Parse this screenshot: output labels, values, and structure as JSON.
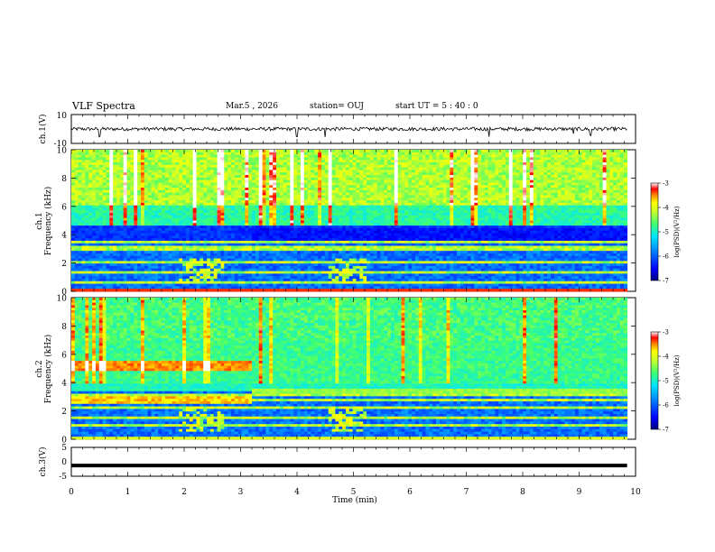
{
  "header": {
    "title": "VLF Spectra",
    "date": "Mar.5 , 2026",
    "station": "station= OUJ",
    "start_time": "start UT = 5 : 40 : 0"
  },
  "colors": {
    "colormap": [
      "#00007f",
      "#0000ff",
      "#0080ff",
      "#00e5ff",
      "#40ff80",
      "#a0ff40",
      "#ffff00",
      "#ff8000",
      "#ff0000",
      "#ffffff"
    ],
    "trace": "#000000"
  },
  "chart_data": [
    {
      "id": "ch1-waveform",
      "type": "line",
      "ylabel": "ch.1(V)",
      "ylim": [
        -10,
        10
      ],
      "yticks": [
        "10",
        "-10"
      ],
      "xlim": [
        0,
        10
      ],
      "series": [
        {
          "baseline": 0,
          "amplitude": 1.2,
          "spikes_at": [
            0.5,
            4.0,
            4.5,
            7.4,
            8.9,
            9.2
          ]
        }
      ]
    },
    {
      "id": "ch1-spectrogram",
      "type": "heatmap",
      "ylabel": "ch.1\nFrequency (kHz)",
      "ylabel_lines": [
        "ch.1",
        "Frequency (kHz)"
      ],
      "ylim": [
        0,
        10
      ],
      "yticks": [
        "0",
        "2",
        "4",
        "6",
        "8",
        "10"
      ],
      "xlim": [
        0,
        9.85
      ],
      "colorbar": {
        "label": "log(PSD)(V²/Hz)",
        "range": [
          -7,
          -3
        ],
        "ticks": [
          "-3",
          "-4",
          "-5",
          "-6",
          "-7"
        ]
      },
      "features": {
        "background_low": -6.3,
        "sferic_band_kHz": [
          4.5,
          10
        ],
        "stations_kHz": [
          0.7,
          1.3,
          2.0,
          2.9,
          3.2,
          3.5
        ]
      }
    },
    {
      "id": "ch2-spectrogram",
      "type": "heatmap",
      "ylabel_lines": [
        "ch.2",
        "Frequency (kHz)"
      ],
      "ylim": [
        0,
        10
      ],
      "yticks": [
        "0",
        "2",
        "4",
        "6",
        "8",
        "10"
      ],
      "xlim": [
        0,
        9.85
      ],
      "colorbar": {
        "label": "log(PSD)(V²/Hz)",
        "range": [
          -7,
          -3
        ],
        "ticks": [
          "-3",
          "-4",
          "-5",
          "-6",
          "-7"
        ]
      },
      "features": {
        "band_5kHz_until_min": 3.15,
        "band_2_8kHz_until_min": 3.15,
        "stations_kHz": [
          0.9,
          1.5,
          2.2,
          2.8,
          3.1
        ]
      }
    },
    {
      "id": "ch3-waveform",
      "type": "line",
      "ylabel": "ch.3(V)",
      "ylim": [
        -5,
        5
      ],
      "yticks": [
        "5",
        "0",
        "-5"
      ],
      "xlim": [
        0,
        10
      ],
      "series": [
        {
          "baseline": -1.3,
          "amplitude": 0.1
        }
      ]
    }
  ],
  "xaxis": {
    "label": "Time (min)",
    "ticks": [
      "0",
      "1",
      "2",
      "3",
      "4",
      "5",
      "6",
      "7",
      "8",
      "9",
      "10"
    ],
    "range": [
      0,
      10
    ]
  }
}
